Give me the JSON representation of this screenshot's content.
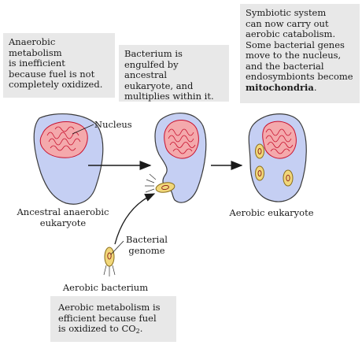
{
  "boxes": {
    "anaerobic": "Anaerobic\nmetabolism\nis inefficient\nbecause fuel is not\ncompletely oxidized.",
    "engulf": "Bacterium is\nengulfed by ancestral\neukaryote, and\nmultiplies within it.",
    "symbiotic_pre": "Symbiotic system\ncan now carry out\naerobic catabolism.\nSome bacterial genes\nmove to the nucleus,\nand the bacterial\nendosymbionts become\n",
    "symbiotic_bold": "mitochondria",
    "symbiotic_post": ".",
    "aerobic_pre": "Aerobic metabolism is\nefficient because fuel\nis oxidized to CO",
    "aerobic_sub": "2",
    "aerobic_post": "."
  },
  "labels": {
    "nucleus": "Nucleus",
    "ancestral": "Ancestral anaerobic\neukaryote",
    "aerobic_euk": "Aerobic eukaryote",
    "bacterial_genome": "Bacterial\ngenome",
    "aerobic_bacterium": "Aerobic bacterium"
  },
  "colors": {
    "cell_fill": "#c5cff3",
    "cell_stroke": "#3a3a3a",
    "nucleus_fill": "#f4a9ac",
    "nucleus_dna": "#c8102e",
    "bacterium_fill": "#f1d77a",
    "bacterium_stroke": "#8a6d1a",
    "box_bg": "#e8e8e8",
    "arrow": "#1a1a1a"
  }
}
